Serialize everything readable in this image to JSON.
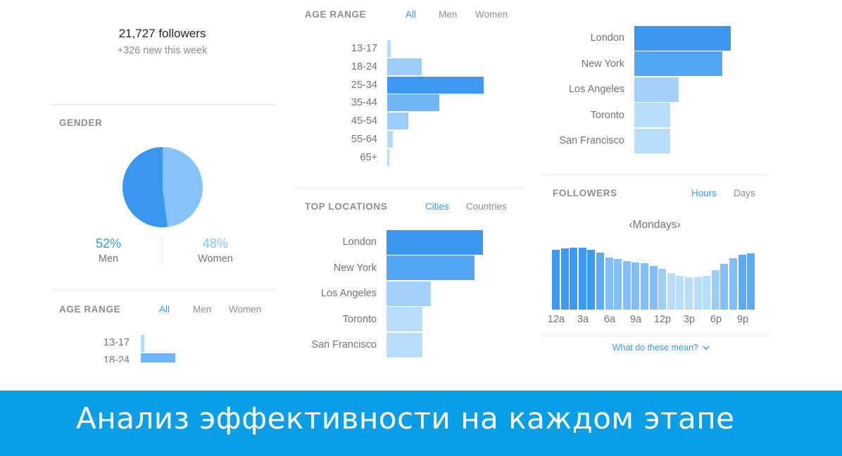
{
  "colors": {
    "accent": "#3897f0",
    "banner": "#0a9ee8",
    "men": "#3a97f0",
    "women": "#86c2fb"
  },
  "summary": {
    "followers": "21,727 followers",
    "new_this_week": "+326 new this week"
  },
  "gender": {
    "title": "GENDER",
    "men_pct": "52%",
    "men_label": "Men",
    "women_pct": "48%",
    "women_label": "Women"
  },
  "age_tabs": {
    "all": "All",
    "men": "Men",
    "women": "Women"
  },
  "age_range_left": {
    "title": "AGE RANGE",
    "visible_ticks": [
      "13-17",
      "18-24"
    ],
    "values": [
      2,
      18
    ]
  },
  "age_range_middle": {
    "title": "AGE RANGE",
    "ticks": [
      "13-17",
      "18-24",
      "25-34",
      "35-44",
      "45-54",
      "55-64",
      "65+"
    ],
    "values": [
      2,
      18,
      50,
      27,
      11,
      3,
      1
    ]
  },
  "top_locations": {
    "title": "TOP LOCATIONS",
    "tab_cities": "Cities",
    "tab_countries": "Countries",
    "cities": [
      "London",
      "New York",
      "Los Angeles",
      "Toronto",
      "San Francisco"
    ],
    "values": [
      100,
      91,
      46,
      37,
      37
    ]
  },
  "top_locations_right": {
    "cities": [
      "London",
      "New York",
      "Los Angeles",
      "Toronto",
      "San Francisco"
    ],
    "values": [
      100,
      91,
      46,
      37,
      37
    ]
  },
  "followers": {
    "title": "FOLLOWERS",
    "tab_hours": "Hours",
    "tab_days": "Days",
    "day_label": "Mondays",
    "hour_labels": [
      "12a",
      "3a",
      "6a",
      "9a",
      "12p",
      "3p",
      "6p",
      "9p"
    ],
    "hourly_values": [
      100,
      102,
      103,
      103,
      100,
      95,
      87,
      84,
      81,
      79,
      77,
      73,
      68,
      61,
      56,
      54,
      54,
      56,
      66,
      76,
      86,
      91,
      94
    ],
    "help_link": "What do these mean?"
  },
  "banner": {
    "text": "Анализ эффективности на каждом этапе"
  }
}
